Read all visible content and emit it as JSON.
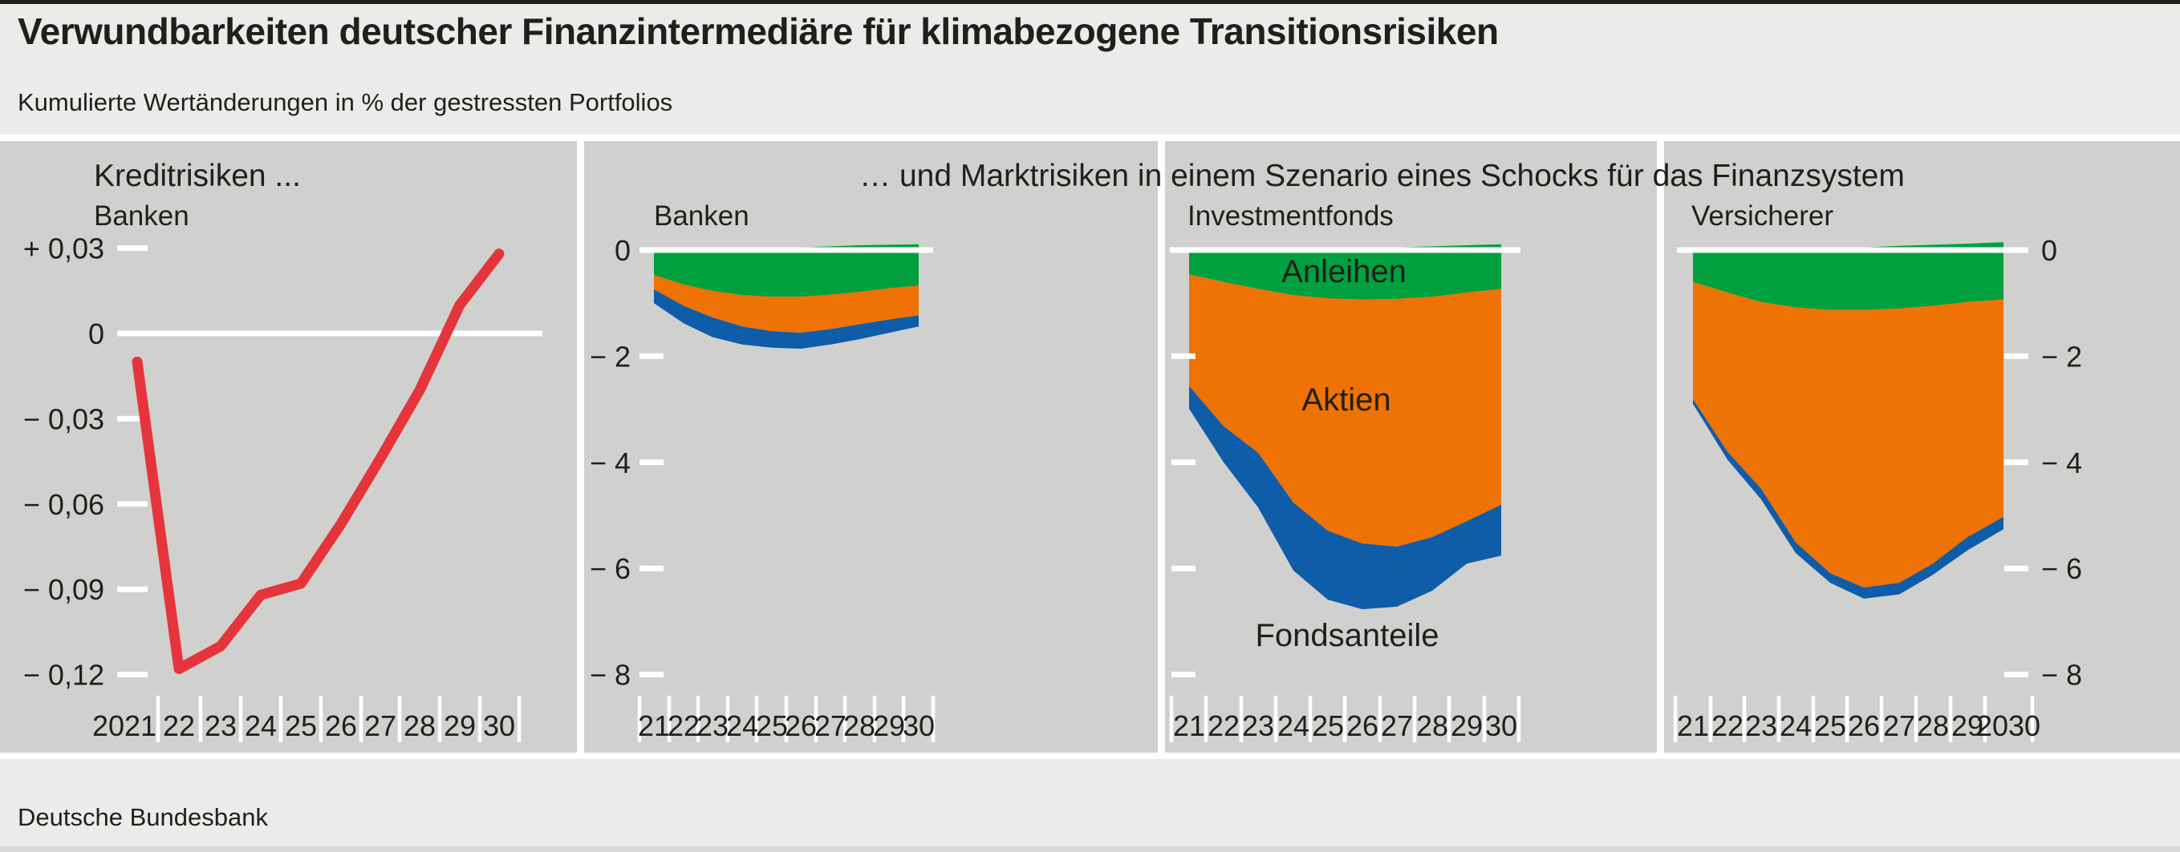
{
  "header": {
    "title": "Verwundbarkeiten deutscher Finanzintermediäre für klimabezogene Transitionsrisiken",
    "subtitle": "Kumulierte Wertänderungen in % der gestressten Portfolios"
  },
  "group_title": "… und Marktrisiken in einem Szenario eines Schocks für das Finanzsystem",
  "footer": {
    "source": "Deutsche Bundesbank"
  },
  "colors": {
    "page_background": "#ebebe9",
    "panel_background": "#d0d0ce",
    "top_rule": "#211f1c",
    "text": "#211f1c",
    "grid_white": "#ffffff",
    "credit_line_red": "#e5343b",
    "anleihen_green": "#00a03e",
    "aktien_orange": "#ee7204",
    "fondsanteile_blue": "#0f5ca8"
  },
  "chart_data": [
    {
      "id": "kreditrisiken-banken",
      "type": "line",
      "title": "Kreditrisiken ...",
      "subtitle": "Banken",
      "years": [
        2021,
        2022,
        2023,
        2024,
        2025,
        2026,
        2027,
        2028,
        2029,
        2030
      ],
      "x_labels": [
        "2021",
        "22",
        "23",
        "24",
        "25",
        "26",
        "27",
        "28",
        "29",
        "30"
      ],
      "ylim": [
        -0.135,
        0.05
      ],
      "grid": "zero-line-only",
      "legend": "none",
      "yticks": [
        {
          "value": 0.03,
          "label": "+ 0,03"
        },
        {
          "value": 0,
          "label": "0"
        },
        {
          "value": -0.03,
          "label": "− 0,03"
        },
        {
          "value": -0.06,
          "label": "− 0,06"
        },
        {
          "value": -0.09,
          "label": "− 0,09"
        },
        {
          "value": -0.12,
          "label": "− 0,12"
        }
      ],
      "series": [
        {
          "name": "Banken",
          "color": "#e5343b",
          "values": [
            -0.01,
            -0.118,
            -0.11,
            -0.092,
            -0.088,
            -0.067,
            -0.044,
            -0.02,
            0.01,
            0.028
          ]
        }
      ]
    },
    {
      "id": "marktrisiken-banken",
      "type": "area",
      "subtitle": "Banken",
      "years": [
        2021,
        2022,
        2023,
        2024,
        2025,
        2026,
        2027,
        2028,
        2029,
        2030
      ],
      "x_labels": [
        "21",
        "22",
        "23",
        "24",
        "25",
        "26",
        "27",
        "28",
        "29",
        "30"
      ],
      "ylim": [
        -8.7,
        0.6
      ],
      "ytick_side": "left",
      "yticks": [
        {
          "value": 0,
          "label": "0"
        },
        {
          "value": -2,
          "label": "− 2"
        },
        {
          "value": -4,
          "label": "− 4"
        },
        {
          "value": -6,
          "label": "− 6"
        },
        {
          "value": -8,
          "label": "− 8"
        }
      ],
      "layers": [
        {
          "name": "Anleihen",
          "color": "#00a03e",
          "top": [
            0,
            0,
            0.01,
            0.02,
            0.03,
            0.05,
            0.07,
            0.09,
            0.1,
            0.11
          ],
          "bottom": [
            -0.47,
            -0.65,
            -0.77,
            -0.85,
            -0.88,
            -0.88,
            -0.84,
            -0.79,
            -0.72,
            -0.67
          ]
        },
        {
          "name": "Aktien",
          "color": "#ee7204",
          "top": [
            -0.47,
            -0.65,
            -0.77,
            -0.85,
            -0.88,
            -0.88,
            -0.84,
            -0.79,
            -0.72,
            -0.67
          ],
          "bottom": [
            -0.74,
            -1.05,
            -1.27,
            -1.44,
            -1.53,
            -1.56,
            -1.49,
            -1.4,
            -1.31,
            -1.23
          ]
        },
        {
          "name": "Fondsanteile",
          "color": "#0f5ca8",
          "top": [
            -0.74,
            -1.05,
            -1.27,
            -1.44,
            -1.53,
            -1.56,
            -1.49,
            -1.4,
            -1.31,
            -1.23
          ],
          "bottom": [
            -1.0,
            -1.38,
            -1.64,
            -1.78,
            -1.84,
            -1.86,
            -1.78,
            -1.68,
            -1.56,
            -1.44
          ]
        }
      ]
    },
    {
      "id": "marktrisiken-investmentfonds",
      "type": "area",
      "subtitle": "Investmentfonds",
      "years": [
        2021,
        2022,
        2023,
        2024,
        2025,
        2026,
        2027,
        2028,
        2029,
        2030
      ],
      "x_labels": [
        "21",
        "22",
        "23",
        "24",
        "25",
        "26",
        "27",
        "28",
        "29",
        "30"
      ],
      "ylim": [
        -8.7,
        0.6
      ],
      "ytick_side": "none",
      "show_layer_labels": true,
      "yticks": [
        {
          "value": 0
        },
        {
          "value": -2
        },
        {
          "value": -4
        },
        {
          "value": -6
        },
        {
          "value": -8
        }
      ],
      "layers": [
        {
          "name": "Anleihen",
          "color": "#00a03e",
          "top": [
            0,
            0,
            0,
            0.01,
            0.02,
            0.03,
            0.05,
            0.07,
            0.09,
            0.11
          ],
          "bottom": [
            -0.46,
            -0.6,
            -0.73,
            -0.85,
            -0.91,
            -0.93,
            -0.92,
            -0.88,
            -0.8,
            -0.73
          ]
        },
        {
          "name": "Aktien",
          "color": "#ee7204",
          "top": [
            -0.46,
            -0.6,
            -0.73,
            -0.85,
            -0.91,
            -0.93,
            -0.92,
            -0.88,
            -0.8,
            -0.73
          ],
          "bottom": [
            -2.56,
            -3.32,
            -3.82,
            -4.76,
            -5.29,
            -5.53,
            -5.59,
            -5.41,
            -5.11,
            -4.8
          ]
        },
        {
          "name": "Fondsanteile",
          "color": "#0f5ca8",
          "top": [
            -2.56,
            -3.32,
            -3.82,
            -4.76,
            -5.29,
            -5.53,
            -5.59,
            -5.41,
            -5.11,
            -4.8
          ],
          "bottom": [
            -2.99,
            -4.0,
            -4.85,
            -6.04,
            -6.59,
            -6.77,
            -6.72,
            -6.42,
            -5.91,
            -5.76
          ]
        }
      ]
    },
    {
      "id": "marktrisiken-versicherer",
      "type": "area",
      "subtitle": "Versicherer",
      "years": [
        2021,
        2022,
        2023,
        2024,
        2025,
        2026,
        2027,
        2028,
        2029,
        2030
      ],
      "x_labels": [
        "21",
        "22",
        "23",
        "24",
        "25",
        "26",
        "27",
        "28",
        "29",
        "2030"
      ],
      "ylim": [
        -8.7,
        0.6
      ],
      "ytick_side": "right",
      "yticks": [
        {
          "value": 0,
          "label": "0"
        },
        {
          "value": -2,
          "label": "− 2"
        },
        {
          "value": -4,
          "label": "− 4"
        },
        {
          "value": -6,
          "label": "− 6"
        },
        {
          "value": -8,
          "label": "− 8"
        }
      ],
      "layers": [
        {
          "name": "Anleihen",
          "color": "#00a03e",
          "top": [
            0,
            0,
            0,
            0.01,
            0.03,
            0.05,
            0.08,
            0.1,
            0.12,
            0.15
          ],
          "bottom": [
            -0.6,
            -0.8,
            -0.98,
            -1.08,
            -1.13,
            -1.13,
            -1.1,
            -1.05,
            -0.98,
            -0.93
          ]
        },
        {
          "name": "Aktien",
          "color": "#ee7204",
          "top": [
            -0.6,
            -0.8,
            -0.98,
            -1.08,
            -1.13,
            -1.13,
            -1.1,
            -1.05,
            -0.98,
            -0.93
          ],
          "bottom": [
            -2.81,
            -3.8,
            -4.5,
            -5.51,
            -6.09,
            -6.36,
            -6.27,
            -5.91,
            -5.41,
            -5.03
          ]
        },
        {
          "name": "Fondsanteile",
          "color": "#0f5ca8",
          "top": [
            -2.81,
            -3.8,
            -4.5,
            -5.51,
            -6.09,
            -6.36,
            -6.27,
            -5.91,
            -5.41,
            -5.03
          ],
          "bottom": [
            -2.9,
            -3.95,
            -4.7,
            -5.71,
            -6.27,
            -6.57,
            -6.49,
            -6.12,
            -5.66,
            -5.26
          ]
        }
      ]
    }
  ]
}
